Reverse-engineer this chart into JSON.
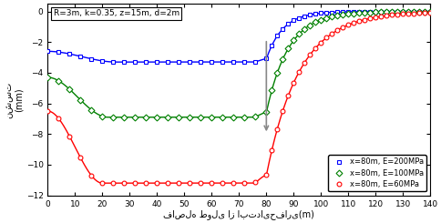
{
  "title_box": "R=3m, k=0.35, z=15m, d=2m",
  "xlabel": "فاصله طولی از ابتدایحفاری(m)",
  "ylabel": "نشست\n(mm)",
  "xlim": [
    0,
    140
  ],
  "ylim": [
    -12,
    0.5
  ],
  "xticks": [
    0,
    10,
    20,
    30,
    40,
    50,
    60,
    70,
    80,
    90,
    100,
    110,
    120,
    130,
    140
  ],
  "yticks": [
    0,
    -2,
    -4,
    -6,
    -8,
    -10,
    -12
  ],
  "series": [
    {
      "label": "x=80m, E=200MPa",
      "color": "#0000FF",
      "marker": "s",
      "y0": -2.6,
      "y_flat": -3.3,
      "y_face": -3.1,
      "y_end": -0.2,
      "tau_after": 6.0,
      "trough_x": 25
    },
    {
      "label": "x=80m, E=100MPa",
      "color": "#008000",
      "marker": "D",
      "y0": -4.3,
      "y_flat": -6.9,
      "y_face": -6.6,
      "y_end": -0.35,
      "tau_after": 8.0,
      "trough_x": 22
    },
    {
      "label": "x=80m, E=60MPa",
      "color": "#FF0000",
      "marker": "o",
      "y0": -6.5,
      "y_flat": -11.2,
      "y_face": -10.7,
      "y_end": -0.55,
      "tau_after": 12.0,
      "trough_x": 20
    }
  ]
}
